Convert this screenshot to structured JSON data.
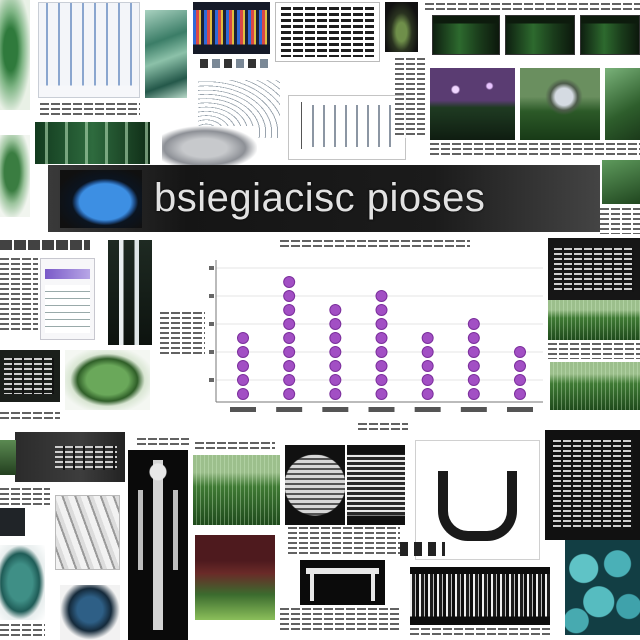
{
  "banner": {
    "title": "bsiegiacisc pioses"
  },
  "chart_data": {
    "type": "bar",
    "mark": "stacked dots",
    "values": [
      5,
      9,
      7,
      8,
      5,
      6,
      4
    ],
    "color": "#a24fc4",
    "grid": true,
    "legend": "none"
  }
}
